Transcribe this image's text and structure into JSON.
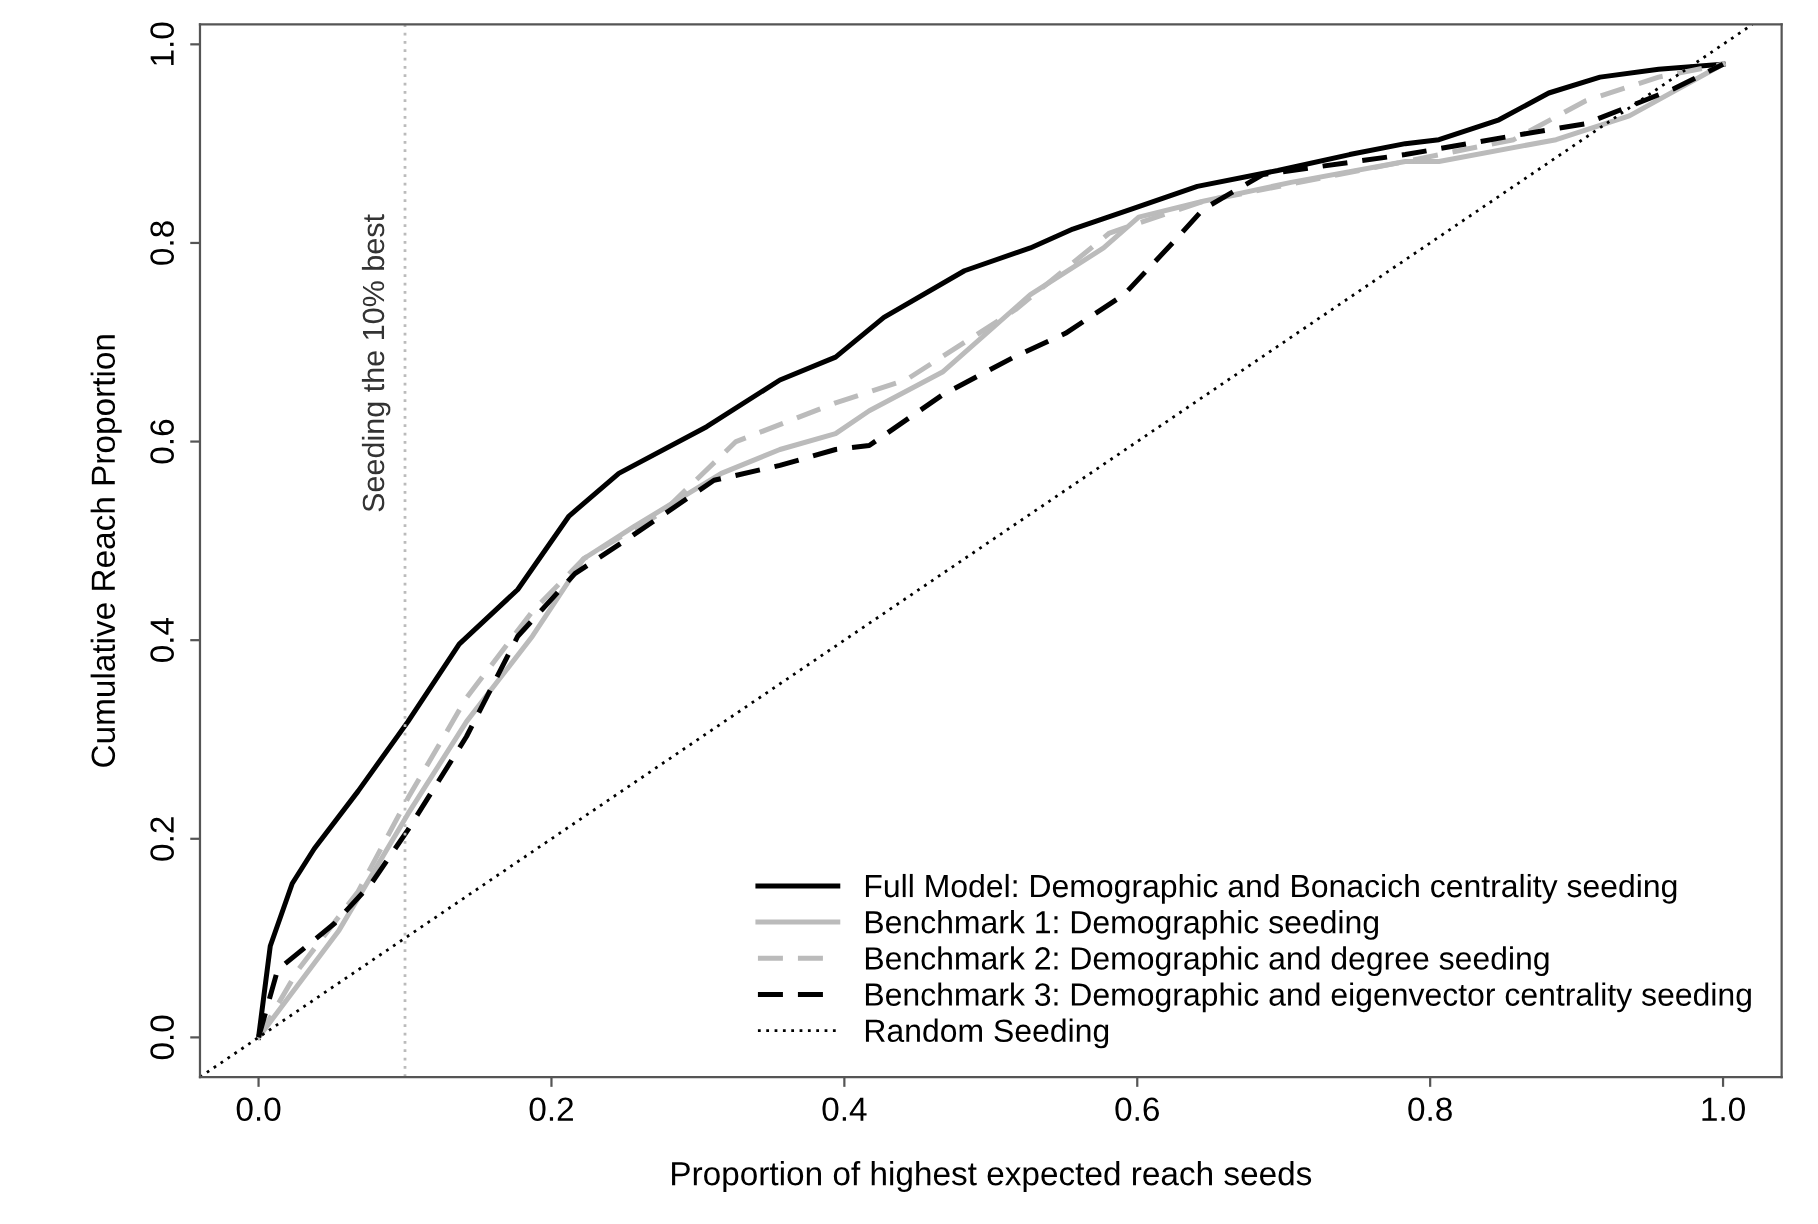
{
  "chart_data": {
    "type": "line",
    "xlabel": "Proportion of highest expected reach seeds",
    "ylabel": "Cumulative Reach Proportion",
    "xlim": [
      -0.04,
      1.04
    ],
    "ylim": [
      -0.04,
      1.02
    ],
    "xticks": [
      {
        "value": 0,
        "label": "0.0"
      },
      0.2,
      0.4,
      0.6,
      0.8,
      {
        "value": 1,
        "label": "1.0"
      }
    ],
    "yticks": [
      {
        "value": 0,
        "label": "0.0"
      },
      0.2,
      0.4,
      0.6,
      0.8,
      {
        "value": 1,
        "label": "1.0"
      }
    ],
    "grid": false,
    "legend": "bottom right",
    "ref_lines": [
      {
        "axis": "x",
        "value": 0.1,
        "label": "Seeding the 10% best",
        "color": "#bbbbbb",
        "line_style": "dotted"
      }
    ],
    "series": [
      {
        "name": "Full Model: Demographic and Bonacich centrality seeding",
        "color": "#000000",
        "line_style": "solid",
        "x": [
          0,
          0.008,
          0.023,
          0.038,
          0.068,
          0.102,
          0.137,
          0.177,
          0.212,
          0.246,
          0.306,
          0.356,
          0.394,
          0.427,
          0.482,
          0.527,
          0.556,
          0.596,
          0.641,
          0.696,
          0.745,
          0.783,
          0.806,
          0.847,
          0.881,
          0.916,
          0.956,
          1.0
        ],
        "values": [
          0,
          0.092,
          0.155,
          0.19,
          0.248,
          0.318,
          0.396,
          0.451,
          0.525,
          0.568,
          0.615,
          0.662,
          0.685,
          0.725,
          0.772,
          0.795,
          0.814,
          0.834,
          0.857,
          0.873,
          0.889,
          0.9,
          0.904,
          0.924,
          0.951,
          0.967,
          0.975,
          0.98
        ]
      },
      {
        "name": "Benchmark 1: Demographic seeding",
        "color": "#bbbbbb",
        "line_style": "solid",
        "x": [
          0,
          0.027,
          0.055,
          0.102,
          0.142,
          0.187,
          0.222,
          0.256,
          0.316,
          0.356,
          0.394,
          0.417,
          0.467,
          0.527,
          0.577,
          0.601,
          0.645,
          0.705,
          0.783,
          0.806,
          0.886,
          0.936,
          1.0
        ],
        "values": [
          0,
          0.053,
          0.108,
          0.225,
          0.318,
          0.404,
          0.482,
          0.514,
          0.568,
          0.592,
          0.608,
          0.631,
          0.67,
          0.748,
          0.795,
          0.826,
          0.842,
          0.861,
          0.882,
          0.882,
          0.904,
          0.928,
          0.98
        ]
      },
      {
        "name": "Benchmark 2: Demographic and degree seeding",
        "color": "#bbbbbb",
        "line_style": "dashed",
        "x": [
          0,
          0.027,
          0.068,
          0.102,
          0.142,
          0.187,
          0.222,
          0.276,
          0.326,
          0.394,
          0.442,
          0.517,
          0.581,
          0.645,
          0.783,
          0.857,
          0.906,
          0.956,
          1.0
        ],
        "values": [
          0,
          0.068,
          0.147,
          0.241,
          0.342,
          0.429,
          0.482,
          0.529,
          0.6,
          0.639,
          0.662,
          0.733,
          0.81,
          0.842,
          0.882,
          0.904,
          0.943,
          0.967,
          0.98
        ]
      },
      {
        "name": "Benchmark 3: Demographic and eigenvector centrality seeding",
        "color": "#000000",
        "line_style": "dashed",
        "x": [
          0,
          0.013,
          0.052,
          0.077,
          0.102,
          0.142,
          0.177,
          0.216,
          0.256,
          0.311,
          0.356,
          0.394,
          0.417,
          0.467,
          0.517,
          0.551,
          0.591,
          0.626,
          0.645,
          0.686,
          0.783,
          0.857,
          0.906,
          0.966,
          1.0
        ],
        "values": [
          0,
          0.068,
          0.115,
          0.155,
          0.209,
          0.303,
          0.404,
          0.467,
          0.506,
          0.561,
          0.576,
          0.592,
          0.596,
          0.647,
          0.686,
          0.709,
          0.748,
          0.803,
          0.834,
          0.869,
          0.889,
          0.908,
          0.92,
          0.955,
          0.98
        ]
      },
      {
        "name": "Random Seeding",
        "color": "#000000",
        "line_style": "dotted",
        "x": [
          -0.04,
          1.02
        ],
        "values": [
          -0.04,
          1.02
        ]
      }
    ]
  }
}
